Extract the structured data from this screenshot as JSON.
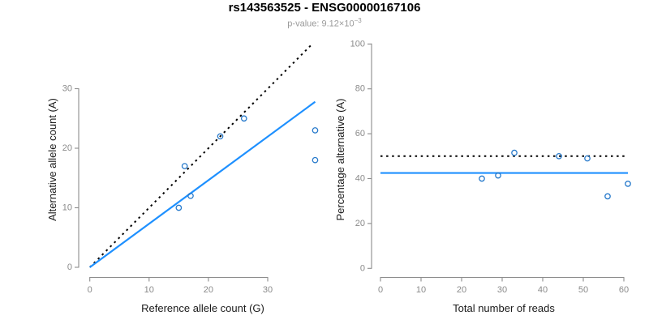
{
  "title": "rs143563525 - ENSG00000167106",
  "subtitle": {
    "text": "p-value: 9.12×10",
    "exponent": "−3"
  },
  "colors": {
    "line_blue": "#1E90FF",
    "point_blue": "#2679CB",
    "dotted_black": "#000000",
    "axis_gray": "#8C8C8C",
    "tick_label_gray": "#8A8A8A",
    "axis_title_dark": "#1A1A1A",
    "title_black": "#000000",
    "subtitle_gray": "#9A9A9A"
  },
  "chart_data": [
    {
      "panel": "left",
      "type": "scatter",
      "xlabel": "Reference allele count (G)",
      "ylabel": "Alternative allele count (A)",
      "x_ticks": [
        0,
        10,
        20,
        30
      ],
      "y_ticks": [
        0,
        10,
        20,
        30
      ],
      "xlim": [
        0,
        38
      ],
      "ylim": [
        0,
        37
      ],
      "grid": false,
      "legend": null,
      "points": [
        [
          15,
          10
        ],
        [
          17,
          12
        ],
        [
          16,
          17
        ],
        [
          22,
          22
        ],
        [
          26,
          25
        ],
        [
          38,
          18
        ],
        [
          38,
          23
        ]
      ],
      "lines": [
        {
          "name": "identity",
          "style": "dotted",
          "color_key": "dotted_black",
          "x1": 0,
          "y1": 0,
          "x2": 37.6,
          "y2": 37.6
        },
        {
          "name": "fit",
          "style": "solid",
          "color_key": "line_blue",
          "x1": 0,
          "y1": 0,
          "x2": 38,
          "y2": 27.8
        }
      ]
    },
    {
      "panel": "right",
      "type": "scatter",
      "xlabel": "Total number of reads",
      "ylabel": "Percentage alternative (A)",
      "x_ticks": [
        0,
        10,
        20,
        30,
        40,
        50,
        60
      ],
      "y_ticks": [
        0,
        20,
        40,
        60,
        80,
        100
      ],
      "xlim": [
        0,
        61
      ],
      "ylim": [
        0,
        100
      ],
      "grid": false,
      "legend": null,
      "points": [
        [
          25,
          40
        ],
        [
          29,
          41.4
        ],
        [
          33,
          51.5
        ],
        [
          44,
          50
        ],
        [
          51,
          49
        ],
        [
          56,
          32.1
        ],
        [
          61,
          37.7
        ]
      ],
      "lines": [
        {
          "name": "fifty-percent",
          "style": "dotted",
          "color_key": "dotted_black",
          "x1": 0,
          "y1": 50,
          "x2": 61,
          "y2": 50
        },
        {
          "name": "mean-alt-fraction",
          "style": "solid",
          "color_key": "line_blue",
          "x1": 0,
          "y1": 42.5,
          "x2": 61,
          "y2": 42.5
        }
      ]
    }
  ]
}
